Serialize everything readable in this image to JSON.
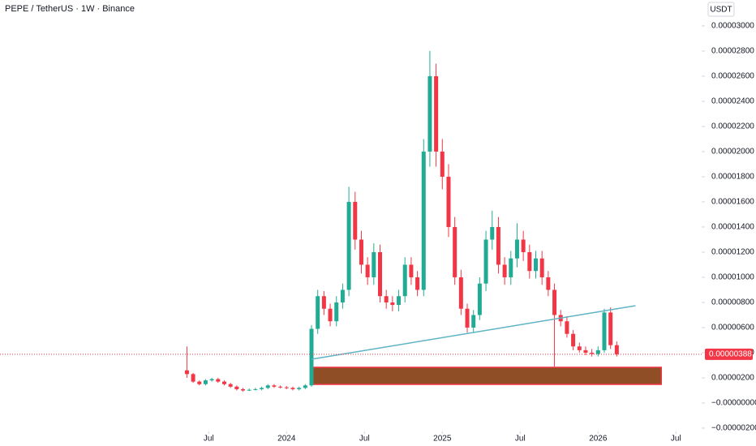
{
  "chart_data": {
    "type": "candlestick",
    "title": "PEPE / TetherUS · 1W · Binance",
    "currency": "USDT",
    "up_color": "#22ab94",
    "down_color": "#f23645",
    "x": [
      2023.36,
      2023.4,
      2023.44,
      2023.48,
      2023.52,
      2023.56,
      2023.6,
      2023.64,
      2023.68,
      2023.72,
      2023.76,
      2023.8,
      2023.84,
      2023.88,
      2023.92,
      2023.96,
      2024.0,
      2024.04,
      2024.08,
      2024.12,
      2024.16,
      2024.2,
      2024.24,
      2024.28,
      2024.32,
      2024.36,
      2024.4,
      2024.44,
      2024.48,
      2024.52,
      2024.56,
      2024.6,
      2024.64,
      2024.68,
      2024.72,
      2024.76,
      2024.8,
      2024.84,
      2024.88,
      2024.92,
      2024.96,
      2025.0,
      2025.04,
      2025.08,
      2025.12,
      2025.16,
      2025.2,
      2025.24,
      2025.28,
      2025.32,
      2025.36,
      2025.4,
      2025.44,
      2025.48,
      2025.52,
      2025.56,
      2025.6,
      2025.64,
      2025.68,
      2025.72,
      2025.76,
      2025.8,
      2025.84,
      2025.88,
      2025.92,
      2025.96,
      2026.0,
      2026.04,
      2026.08,
      2026.12
    ],
    "open": [
      2.6e-06,
      2.3e-06,
      1.7e-06,
      1.5e-06,
      1.8e-06,
      1.9e-06,
      1.7e-06,
      1.5e-06,
      1.3e-06,
      1.1e-06,
      1e-06,
      1.05e-06,
      1.1e-06,
      1.2e-06,
      1.4e-06,
      1.3e-06,
      1.25e-06,
      1.2e-06,
      1.1e-06,
      1.2e-06,
      1.4e-06,
      5.9e-06,
      8.5e-06,
      7.5e-06,
      6.5e-06,
      8e-06,
      9e-06,
      1.6e-05,
      1.3e-05,
      1.1e-05,
      1e-05,
      1.2e-05,
      8.5e-06,
      8e-06,
      7.8e-06,
      8.5e-06,
      1.1e-05,
      1e-05,
      9e-06,
      2e-05,
      2.6e-05,
      2e-05,
      1.8e-05,
      1.4e-05,
      1e-05,
      7.5e-06,
      6e-06,
      7e-06,
      9.5e-06,
      1.3e-05,
      1.4e-05,
      1.1e-05,
      1e-05,
      1.15e-05,
      1.3e-05,
      1.2e-05,
      1.05e-05,
      1.15e-05,
      1e-05,
      9e-06,
      7e-06,
      6.5e-06,
      5.5e-06,
      4.5e-06,
      4.2e-06,
      4e-06,
      3.9e-06,
      4.2e-06,
      7.2e-06,
      4.6e-06
    ],
    "high": [
      4.5e-06,
      2.4e-06,
      1.8e-06,
      1.9e-06,
      2e-06,
      2e-06,
      1.8e-06,
      1.6e-06,
      1.4e-06,
      1.2e-06,
      1.15e-06,
      1.2e-06,
      1.3e-06,
      1.5e-06,
      1.5e-06,
      1.4e-06,
      1.35e-06,
      1.3e-06,
      1.3e-06,
      1.5e-06,
      6.2e-06,
      9e-06,
      8.9e-06,
      7.9e-06,
      8.5e-06,
      9.5e-06,
      1.72e-05,
      1.68e-05,
      1.37e-05,
      1.16e-05,
      1.27e-05,
      1.26e-05,
      9e-06,
      8.5e-06,
      9e-06,
      1.16e-05,
      1.16e-05,
      1.05e-05,
      2.1e-05,
      2.8e-05,
      2.7e-05,
      2.1e-05,
      1.9e-05,
      1.48e-05,
      1.06e-05,
      7.9e-06,
      7.4e-06,
      1e-05,
      1.37e-05,
      1.53e-05,
      1.48e-05,
      1.16e-05,
      1.21e-05,
      1.43e-05,
      1.37e-05,
      1.26e-05,
      1.21e-05,
      1.21e-05,
      1.05e-05,
      9.5e-06,
      7.4e-06,
      6.9e-06,
      5.8e-06,
      4.8e-06,
      4.5e-06,
      4.3e-06,
      4.5e-06,
      7.5e-06,
      7.6e-06,
      4.9e-06
    ],
    "low": [
      2e-06,
      1.6e-06,
      1.4e-06,
      1.4e-06,
      1.7e-06,
      1.6e-06,
      1.4e-06,
      1.2e-06,
      1e-06,
      9e-07,
      9.5e-07,
      1e-06,
      1e-06,
      1.1e-06,
      1.2e-06,
      1.15e-06,
      1.1e-06,
      1e-06,
      1e-06,
      1.1e-06,
      1.3e-06,
      5.5e-06,
      7e-06,
      6.1e-06,
      6.1e-06,
      7.5e-06,
      8.5e-06,
      1.22e-05,
      1.03e-05,
      9.4e-06,
      9.4e-06,
      8e-06,
      7.5e-06,
      7.3e-06,
      7.3e-06,
      8e-06,
      9.4e-06,
      8.5e-06,
      8.5e-06,
      1.88e-05,
      1.88e-05,
      1.7e-05,
      1.32e-05,
      9.4e-06,
      7e-06,
      5.6e-06,
      5.6e-06,
      6.6e-06,
      8.9e-06,
      1.22e-05,
      1.03e-05,
      9.4e-06,
      9.4e-06,
      1.08e-05,
      1.13e-05,
      9.9e-06,
      9.9e-06,
      9.4e-06,
      8.5e-06,
      2.9e-06,
      6.1e-06,
      5.2e-06,
      4.2e-06,
      4e-06,
      3.8e-06,
      3.7e-06,
      3.7e-06,
      4e-06,
      4.3e-06,
      3.7e-06
    ],
    "close": [
      2.3e-06,
      1.7e-06,
      1.5e-06,
      1.8e-06,
      1.9e-06,
      1.7e-06,
      1.5e-06,
      1.3e-06,
      1.1e-06,
      1e-06,
      1.05e-06,
      1.1e-06,
      1.2e-06,
      1.4e-06,
      1.3e-06,
      1.25e-06,
      1.2e-06,
      1.1e-06,
      1.2e-06,
      1.4e-06,
      5.9e-06,
      8.5e-06,
      7.5e-06,
      6.5e-06,
      8e-06,
      9e-06,
      1.6e-05,
      1.3e-05,
      1.1e-05,
      1e-05,
      1.2e-05,
      8.5e-06,
      8e-06,
      7.8e-06,
      8.5e-06,
      1.1e-05,
      1e-05,
      9e-06,
      2e-05,
      2.6e-05,
      2e-05,
      1.8e-05,
      1.4e-05,
      1e-05,
      7.5e-06,
      6e-06,
      7e-06,
      9.5e-06,
      1.3e-05,
      1.4e-05,
      1.1e-05,
      1e-05,
      1.15e-05,
      1.3e-05,
      1.2e-05,
      1.05e-05,
      1.15e-05,
      1e-05,
      9e-06,
      7e-06,
      6.5e-06,
      5.5e-06,
      4.5e-06,
      4.2e-06,
      4e-06,
      3.9e-06,
      4.2e-06,
      7.2e-06,
      4.6e-06,
      3.88e-06
    ],
    "last_price": {
      "value": 3.88e-06,
      "label": "0.00000388"
    },
    "xlim": [
      2022.16,
      2026.665
    ],
    "ylim": [
      -2.26e-06,
      3.206e-05
    ],
    "xticks": [
      {
        "value": 2023.5,
        "label": "Jul"
      },
      {
        "value": 2024,
        "label": "2024"
      },
      {
        "value": 2024.5,
        "label": "Jul"
      },
      {
        "value": 2025,
        "label": "2025"
      },
      {
        "value": 2025.5,
        "label": "Jul"
      },
      {
        "value": 2026,
        "label": "2026"
      },
      {
        "value": 2026.5,
        "label": "Jul"
      }
    ],
    "yticks": [
      {
        "value": -2e-06,
        "label": "−0.00000200"
      },
      {
        "value": 0,
        "label": "−0.00000000"
      },
      {
        "value": 2e-06,
        "label": "0.00000200"
      },
      {
        "value": 4e-06,
        "label": "0.00000400"
      },
      {
        "value": 6e-06,
        "label": "0.00000600"
      },
      {
        "value": 8e-06,
        "label": "0.00000800"
      },
      {
        "value": 1e-05,
        "label": "0.00001000"
      },
      {
        "value": 1.2e-05,
        "label": "0.00001200"
      },
      {
        "value": 1.4e-05,
        "label": "0.00001400"
      },
      {
        "value": 1.6e-05,
        "label": "0.00001600"
      },
      {
        "value": 1.8e-05,
        "label": "0.00001800"
      },
      {
        "value": 2e-05,
        "label": "0.00002000"
      },
      {
        "value": 2.2e-05,
        "label": "0.00002200"
      },
      {
        "value": 2.4e-05,
        "label": "0.00002400"
      },
      {
        "value": 2.6e-05,
        "label": "0.00002600"
      },
      {
        "value": 2.8e-05,
        "label": "0.00002800"
      },
      {
        "value": 3e-05,
        "label": "0.00003000"
      }
    ],
    "trendline": {
      "x": [
        2024.16,
        2026.24
      ],
      "y": [
        3.48e-06,
        7.74e-06
      ],
      "color": "#5fb3c6"
    },
    "zone": {
      "x": [
        2024.156,
        2026.406
      ],
      "y": [
        1.48e-06,
        2.84e-06
      ],
      "fill": "#8f4e25",
      "stroke": "#f23645"
    }
  }
}
